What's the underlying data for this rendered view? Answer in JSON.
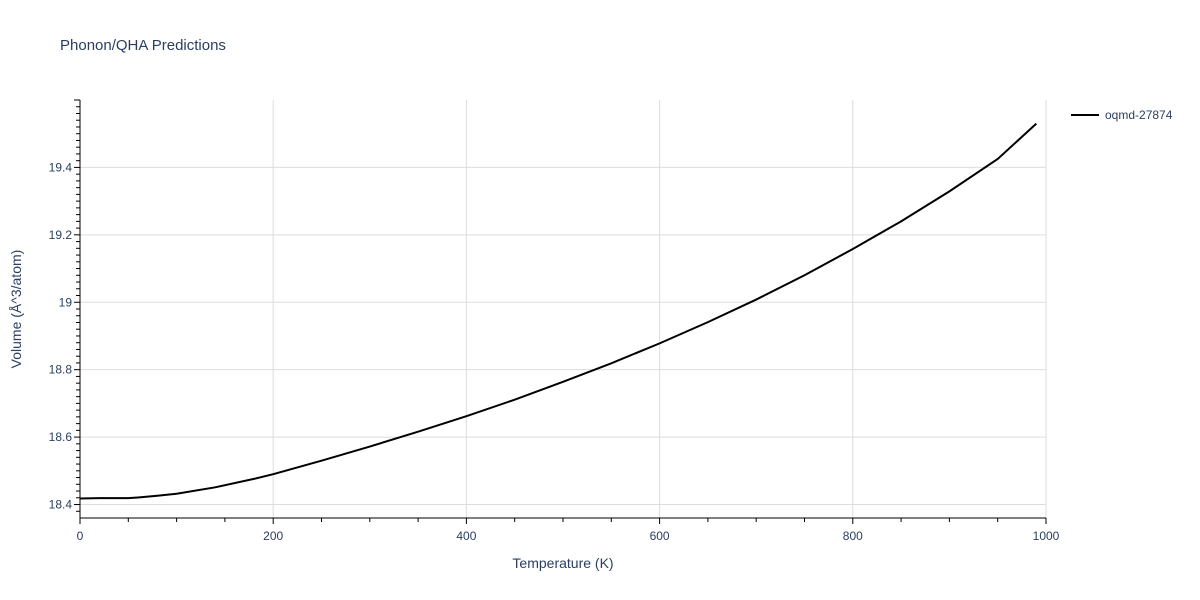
{
  "chart_data": {
    "type": "line",
    "title": "Phonon/QHA Predictions",
    "xlabel": "Temperature (K)",
    "ylabel": "Volume (Å^3/atom)",
    "xlim": [
      0,
      1000
    ],
    "ylim": [
      18.36,
      19.6
    ],
    "xticks": [
      0,
      200,
      400,
      600,
      800,
      1000
    ],
    "xtick_labels": [
      "0",
      "200",
      "400",
      "600",
      "800",
      "1000"
    ],
    "yticks": [
      18.4,
      18.6,
      18.8,
      19.0,
      19.2,
      19.4
    ],
    "ytick_labels": [
      "18.4",
      "18.6",
      "18.8",
      "19",
      "19.2",
      "19.4"
    ],
    "grid": true,
    "legend_position": "top-right",
    "series": [
      {
        "name": "oqmd-27874",
        "color": "#000000",
        "x": [
          0,
          20,
          50,
          60,
          80,
          100,
          140,
          180,
          200,
          250,
          300,
          350,
          400,
          450,
          500,
          550,
          600,
          650,
          700,
          750,
          800,
          850,
          900,
          950,
          990
        ],
        "y": [
          18.418,
          18.419,
          18.419,
          18.421,
          18.426,
          18.432,
          18.451,
          18.476,
          18.49,
          18.53,
          18.572,
          18.616,
          18.662,
          18.711,
          18.764,
          18.819,
          18.878,
          18.941,
          19.008,
          19.08,
          19.158,
          19.24,
          19.329,
          19.425,
          19.53
        ]
      }
    ]
  }
}
